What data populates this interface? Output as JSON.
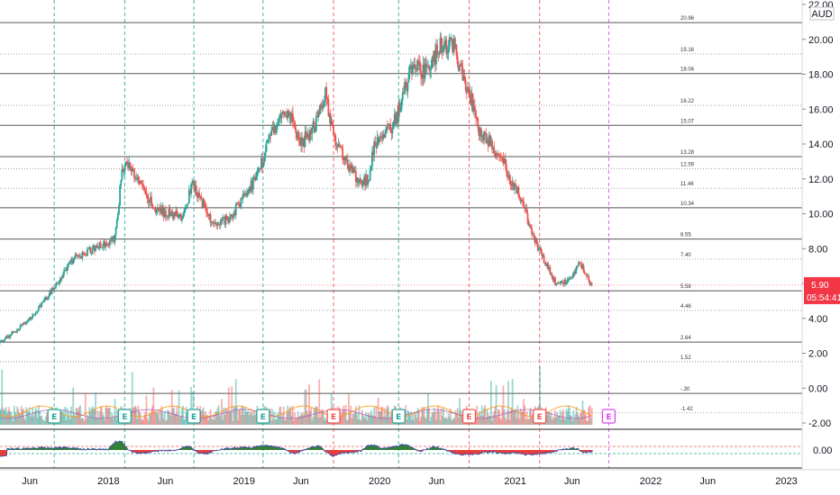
{
  "chart_data": {
    "type": "candlestick",
    "currency": "AUD",
    "last_price": "5.90",
    "countdown": "05:54:41",
    "y_ticks": [
      "22.00",
      "20.00",
      "18.00",
      "16.00",
      "14.00",
      "12.00",
      "10.00",
      "8.00",
      "6.00",
      "4.00",
      "2.00",
      "0.00",
      "-2.00"
    ],
    "y_range": [
      -2,
      22
    ],
    "x_ticks": [
      {
        "label": "Jun",
        "t": 2017.42
      },
      {
        "label": "2018",
        "t": 2018.0
      },
      {
        "label": "Jun",
        "t": 2018.42
      },
      {
        "label": "2019",
        "t": 2019.0
      },
      {
        "label": "Jun",
        "t": 2019.42
      },
      {
        "label": "2020",
        "t": 2020.0
      },
      {
        "label": "Jun",
        "t": 2020.42
      },
      {
        "label": "2021",
        "t": 2021.0
      },
      {
        "label": "Jun",
        "t": 2021.42
      },
      {
        "label": "2022",
        "t": 2022.0
      },
      {
        "label": "Jun",
        "t": 2022.42
      },
      {
        "label": "2023",
        "t": 2023.0
      }
    ],
    "x_range": [
      2017.2,
      2023.05
    ],
    "fib_levels": [
      {
        "label": "20.96",
        "value": 20.96,
        "solid": true
      },
      {
        "label": "19.16",
        "value": 19.16,
        "solid": false
      },
      {
        "label": "18.04",
        "value": 18.04,
        "solid": true
      },
      {
        "label": "16.22",
        "value": 16.22,
        "solid": false
      },
      {
        "label": "15.07",
        "value": 15.07,
        "solid": true
      },
      {
        "label": "13.28",
        "value": 13.28,
        "solid": true
      },
      {
        "label": "12.59",
        "value": 12.59,
        "solid": false
      },
      {
        "label": "11.46",
        "value": 11.46,
        "solid": false
      },
      {
        "label": "10.34",
        "value": 10.34,
        "solid": true
      },
      {
        "label": "8.55",
        "value": 8.55,
        "solid": true
      },
      {
        "label": "7.40",
        "value": 7.4,
        "solid": false
      },
      {
        "label": "5.58",
        "value": 5.58,
        "solid": true
      },
      {
        "label": "4.46",
        "value": 4.46,
        "solid": false
      },
      {
        "label": "2.64",
        "value": 2.64,
        "solid": true
      },
      {
        "label": "1.52",
        "value": 1.52,
        "solid": false
      },
      {
        "label": "-.30",
        "value": -0.3,
        "solid": true
      },
      {
        "label": "-1.42",
        "value": -1.42,
        "solid": false
      }
    ],
    "earnings_markers": [
      {
        "label": "E",
        "t": 2017.6,
        "kind": "beat"
      },
      {
        "label": "E",
        "t": 2018.12,
        "kind": "beat"
      },
      {
        "label": "E",
        "t": 2018.63,
        "kind": "beat"
      },
      {
        "label": "E",
        "t": 2019.14,
        "kind": "beat"
      },
      {
        "label": "E",
        "t": 2019.66,
        "kind": "miss"
      },
      {
        "label": "E",
        "t": 2020.14,
        "kind": "beat"
      },
      {
        "label": "E",
        "t": 2020.66,
        "kind": "miss"
      },
      {
        "label": "E",
        "t": 2021.18,
        "kind": "miss"
      },
      {
        "label": "E",
        "t": 2021.69,
        "kind": "upcoming"
      }
    ],
    "price_anchors": [
      [
        2017.2,
        2.6
      ],
      [
        2017.3,
        3.2
      ],
      [
        2017.45,
        4.2
      ],
      [
        2017.6,
        5.8
      ],
      [
        2017.75,
        7.5
      ],
      [
        2017.9,
        8.0
      ],
      [
        2018.05,
        8.6
      ],
      [
        2018.1,
        12.5
      ],
      [
        2018.15,
        13.0
      ],
      [
        2018.25,
        11.5
      ],
      [
        2018.35,
        10.2
      ],
      [
        2018.45,
        10.0
      ],
      [
        2018.55,
        9.8
      ],
      [
        2018.62,
        11.8
      ],
      [
        2018.7,
        10.5
      ],
      [
        2018.78,
        9.2
      ],
      [
        2018.9,
        9.8
      ],
      [
        2019.0,
        11.0
      ],
      [
        2019.1,
        12.2
      ],
      [
        2019.2,
        14.5
      ],
      [
        2019.32,
        16.0
      ],
      [
        2019.42,
        14.0
      ],
      [
        2019.52,
        15.0
      ],
      [
        2019.6,
        16.8
      ],
      [
        2019.66,
        14.5
      ],
      [
        2019.75,
        13.0
      ],
      [
        2019.85,
        11.8
      ],
      [
        2019.92,
        12.0
      ],
      [
        2019.96,
        14.0
      ],
      [
        2020.05,
        14.6
      ],
      [
        2020.12,
        15.4
      ],
      [
        2020.18,
        17.0
      ],
      [
        2020.25,
        18.7
      ],
      [
        2020.35,
        18.0
      ],
      [
        2020.45,
        19.8
      ],
      [
        2020.55,
        19.5
      ],
      [
        2020.62,
        17.5
      ],
      [
        2020.68,
        16.5
      ],
      [
        2020.72,
        15.0
      ],
      [
        2020.8,
        14.2
      ],
      [
        2020.9,
        13.2
      ],
      [
        2020.97,
        11.8
      ],
      [
        2021.05,
        10.8
      ],
      [
        2021.12,
        9.0
      ],
      [
        2021.2,
        7.5
      ],
      [
        2021.3,
        6.0
      ],
      [
        2021.4,
        6.2
      ],
      [
        2021.48,
        7.2
      ],
      [
        2021.55,
        6.0
      ],
      [
        2021.57,
        5.9
      ]
    ],
    "oscillator_ticks": [
      "0.00"
    ]
  }
}
